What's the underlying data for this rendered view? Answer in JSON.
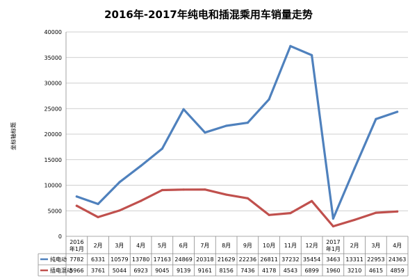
{
  "chart_data": {
    "type": "line",
    "title": "2016年-2017年纯电和插混乘用车销量走势",
    "ylabel": "坐标轴标题",
    "ylim": [
      0,
      40000
    ],
    "yticks": [
      "0",
      "5000",
      "10000",
      "15000",
      "20000",
      "25000",
      "30000",
      "35000",
      "40000"
    ],
    "categories": [
      [
        "2016",
        "年1月"
      ],
      [
        "2月"
      ],
      [
        "3月"
      ],
      [
        "4月"
      ],
      [
        "5月"
      ],
      [
        "6月"
      ],
      [
        "7月"
      ],
      [
        "8月"
      ],
      [
        "9月"
      ],
      [
        "10月"
      ],
      [
        "11月"
      ],
      [
        "12月"
      ],
      [
        "2017",
        "年1月"
      ],
      [
        "2月"
      ],
      [
        "3月"
      ],
      [
        "4月"
      ]
    ],
    "series": [
      {
        "name": "纯电动",
        "color": "#4f81bd",
        "values": [
          7782,
          6331,
          10579,
          13780,
          17163,
          24869,
          20318,
          21629,
          22236,
          26811,
          37232,
          35454,
          3463,
          13311,
          22953,
          24363
        ]
      },
      {
        "name": "插电混动",
        "color": "#c0504d",
        "values": [
          5966,
          3761,
          5044,
          6923,
          9045,
          9139,
          9161,
          8156,
          7436,
          4178,
          4543,
          6899,
          1960,
          3210,
          4615,
          4859
        ]
      }
    ],
    "grid": true,
    "legend": "data-table"
  }
}
